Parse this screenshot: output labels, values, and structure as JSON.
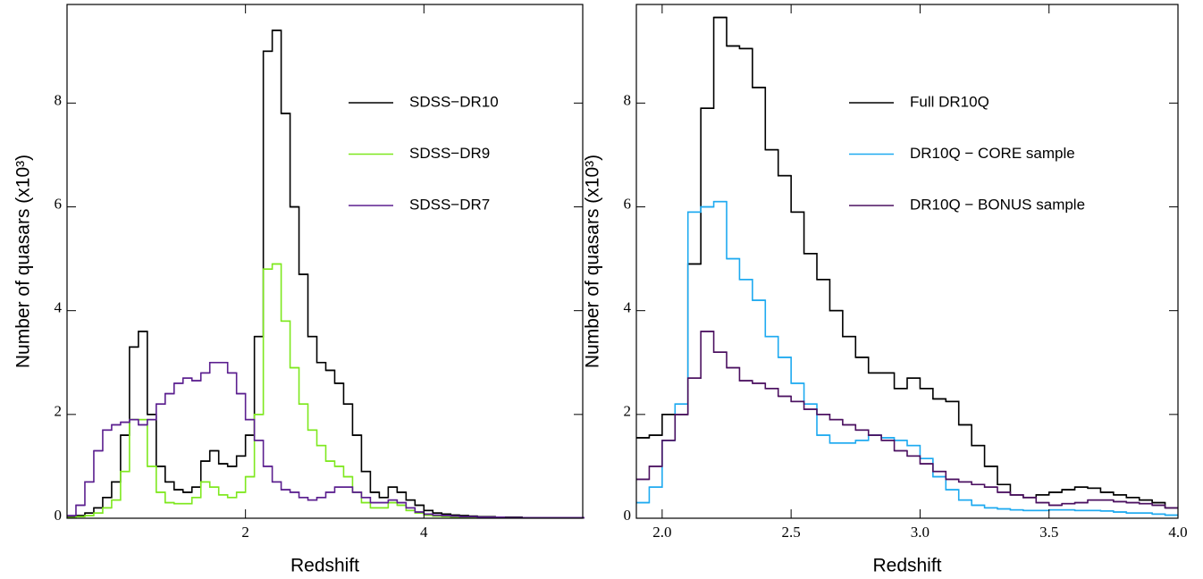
{
  "chart_data": [
    {
      "type": "histogram",
      "xlabel": "Redshift",
      "ylabel": "Number of quasars (x10³)",
      "bins": [
        0,
        0.1,
        0.2,
        0.3,
        0.4,
        0.5,
        0.6,
        0.7,
        0.8,
        0.9,
        1.0,
        1.1,
        1.2,
        1.3,
        1.4,
        1.5,
        1.6,
        1.7,
        1.8,
        1.9,
        2.0,
        2.1,
        2.2,
        2.3,
        2.4,
        2.5,
        2.6,
        2.7,
        2.8,
        2.9,
        3.0,
        3.1,
        3.2,
        3.3,
        3.4,
        3.5,
        3.6,
        3.7,
        3.8,
        3.9,
        4.0,
        4.1,
        4.2,
        4.3,
        4.4,
        4.5,
        4.6,
        4.7,
        4.8,
        4.9,
        5.0,
        5.1,
        5.2,
        5.3,
        5.4,
        5.5,
        5.6,
        5.7,
        5.8
      ],
      "series": [
        {
          "name": "SDSS−DR10",
          "color": "#000000",
          "values": [
            0.02,
            0.05,
            0.1,
            0.2,
            0.4,
            0.7,
            1.6,
            3.3,
            3.6,
            2.0,
            1.0,
            0.7,
            0.55,
            0.5,
            0.6,
            1.1,
            1.3,
            1.05,
            1.0,
            1.2,
            1.6,
            3.5,
            9.0,
            9.4,
            7.8,
            6.0,
            4.7,
            3.5,
            3.0,
            2.85,
            2.6,
            2.2,
            1.6,
            0.9,
            0.5,
            0.4,
            0.6,
            0.5,
            0.35,
            0.25,
            0.15,
            0.1,
            0.08,
            0.06,
            0.05,
            0.04,
            0.03,
            0.03,
            0.02,
            0.02,
            0.02,
            0.01,
            0.01,
            0.01,
            0.01,
            0.01,
            0.01,
            0.01
          ]
        },
        {
          "name": "SDSS−DR9",
          "color": "#7ee81e",
          "values": [
            0.01,
            0.03,
            0.05,
            0.1,
            0.2,
            0.35,
            0.9,
            1.9,
            1.9,
            1.0,
            0.5,
            0.3,
            0.28,
            0.28,
            0.4,
            0.7,
            0.6,
            0.45,
            0.4,
            0.5,
            0.8,
            2.0,
            4.8,
            4.9,
            3.8,
            2.9,
            2.2,
            1.7,
            1.4,
            1.1,
            1.0,
            0.8,
            0.5,
            0.3,
            0.2,
            0.2,
            0.3,
            0.25,
            0.15,
            0.1,
            0.06,
            0.04,
            0.03,
            0.02,
            0.02,
            0.02,
            0.01,
            0.01,
            0.01,
            0.01,
            0.01,
            0.01,
            0.01,
            0.01,
            0.01,
            0.01,
            0.01,
            0.01
          ]
        },
        {
          "name": "SDSS−DR7",
          "color": "#5b1f8f",
          "values": [
            0.05,
            0.25,
            0.7,
            1.3,
            1.7,
            1.8,
            1.85,
            1.9,
            1.8,
            1.9,
            2.2,
            2.4,
            2.6,
            2.7,
            2.65,
            2.8,
            3.0,
            3.0,
            2.8,
            2.4,
            1.9,
            1.5,
            1.0,
            0.7,
            0.55,
            0.5,
            0.4,
            0.35,
            0.4,
            0.5,
            0.6,
            0.6,
            0.5,
            0.4,
            0.3,
            0.3,
            0.35,
            0.3,
            0.2,
            0.12,
            0.08,
            0.06,
            0.05,
            0.04,
            0.03,
            0.03,
            0.02,
            0.02,
            0.02,
            0.01,
            0.01,
            0.01,
            0.01,
            0.01,
            0.01,
            0.01,
            0.01,
            0.01
          ]
        }
      ],
      "xlim": [
        0,
        5.78
      ],
      "ylim": [
        0,
        9.9
      ],
      "xticks": [
        2,
        4
      ],
      "yticks": [
        0,
        2,
        4,
        6,
        8
      ]
    },
    {
      "type": "histogram",
      "xlabel": "Redshift",
      "ylabel": "Number of quasars (x10³)",
      "bins": [
        1.9,
        1.95,
        2.0,
        2.05,
        2.1,
        2.15,
        2.2,
        2.25,
        2.3,
        2.35,
        2.4,
        2.45,
        2.5,
        2.55,
        2.6,
        2.65,
        2.7,
        2.75,
        2.8,
        2.85,
        2.9,
        2.95,
        3.0,
        3.05,
        3.1,
        3.15,
        3.2,
        3.25,
        3.3,
        3.35,
        3.4,
        3.45,
        3.5,
        3.55,
        3.6,
        3.65,
        3.7,
        3.75,
        3.8,
        3.85,
        3.9,
        3.95,
        4.0
      ],
      "series": [
        {
          "name": "Full DR10Q",
          "color": "#000000",
          "values": [
            1.55,
            1.6,
            2.0,
            2.0,
            4.9,
            7.9,
            9.65,
            9.1,
            9.05,
            8.3,
            7.1,
            6.6,
            5.9,
            5.1,
            4.6,
            4.0,
            3.5,
            3.1,
            2.8,
            2.8,
            2.5,
            2.7,
            2.5,
            2.3,
            2.25,
            1.8,
            1.4,
            1.0,
            0.65,
            0.45,
            0.4,
            0.45,
            0.5,
            0.55,
            0.6,
            0.58,
            0.5,
            0.45,
            0.4,
            0.35,
            0.3,
            0.2
          ]
        },
        {
          "name": "DR10Q − CORE sample",
          "color": "#1eaaf0",
          "values": [
            0.3,
            0.6,
            1.5,
            2.2,
            5.9,
            6.0,
            6.1,
            5.0,
            4.6,
            4.2,
            3.5,
            3.1,
            2.6,
            2.2,
            1.6,
            1.45,
            1.45,
            1.5,
            1.6,
            1.55,
            1.5,
            1.4,
            1.15,
            0.8,
            0.55,
            0.35,
            0.25,
            0.2,
            0.18,
            0.16,
            0.15,
            0.15,
            0.16,
            0.16,
            0.15,
            0.15,
            0.14,
            0.12,
            0.1,
            0.1,
            0.08,
            0.06
          ]
        },
        {
          "name": "DR10Q − BONUS sample",
          "color": "#4b1060",
          "values": [
            0.75,
            1.0,
            1.5,
            2.0,
            2.7,
            3.6,
            3.2,
            2.9,
            2.65,
            2.6,
            2.5,
            2.35,
            2.25,
            2.1,
            2.0,
            1.9,
            1.8,
            1.7,
            1.6,
            1.5,
            1.3,
            1.2,
            1.05,
            0.9,
            0.75,
            0.7,
            0.65,
            0.6,
            0.5,
            0.45,
            0.4,
            0.3,
            0.25,
            0.28,
            0.3,
            0.35,
            0.35,
            0.32,
            0.3,
            0.28,
            0.25,
            0.2
          ]
        }
      ],
      "xlim": [
        1.9,
        4.0
      ],
      "ylim": [
        0,
        9.9
      ],
      "xticks": [
        {
          "value": 2,
          "label": "2.0"
        },
        2.5,
        {
          "value": 3,
          "label": "3.0"
        },
        3.5,
        {
          "value": 4,
          "label": "4.0"
        }
      ],
      "yticks": [
        0,
        2,
        4,
        6,
        8
      ]
    }
  ]
}
